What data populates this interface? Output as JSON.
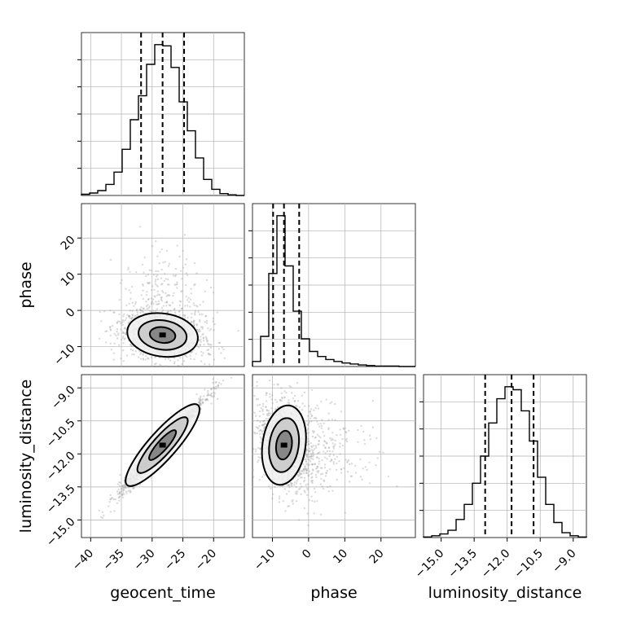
{
  "chart_data": {
    "type": "corner",
    "parameters": [
      "geocent_time",
      "phase",
      "luminosity_distance"
    ],
    "axis_labels": {
      "x": [
        "geocent_time",
        "phase",
        "luminosity_distance"
      ],
      "y": [
        "phase",
        "luminosity_distance"
      ]
    },
    "ranges": {
      "geocent_time": [
        -41.5,
        -15
      ],
      "phase": [
        -15.5,
        29.5
      ],
      "luminosity_distance": [
        -15.8,
        -8.4
      ]
    },
    "ticks": {
      "geocent_time": {
        "values": [
          -40,
          -35,
          -30,
          -25,
          -20
        ],
        "labels": [
          "−40",
          "−35",
          "−30",
          "−25",
          "−20"
        ]
      },
      "phase": {
        "values": [
          -10,
          0,
          10,
          20
        ],
        "labels": [
          "−10",
          "0",
          "10",
          "20"
        ]
      },
      "luminosity_distance": {
        "values": [
          -15.0,
          -13.5,
          -12.0,
          -10.5,
          -9.0
        ],
        "labels": [
          "−15.0",
          "−13.5",
          "−12.0",
          "−10.5",
          "−9.0"
        ]
      }
    },
    "quantiles": {
      "geocent_time": [
        -31.8,
        -28.3,
        -24.8
      ],
      "phase": [
        -9.8,
        -6.8,
        -2.6
      ],
      "luminosity_distance": [
        -13.0,
        -11.8,
        -10.8
      ]
    },
    "histograms": {
      "geocent_time": {
        "edges": [
          -41.5,
          -40.17,
          -38.85,
          -37.52,
          -36.2,
          -34.88,
          -33.55,
          -32.22,
          -30.9,
          -29.58,
          -28.25,
          -26.92,
          -25.6,
          -24.27,
          -22.95,
          -21.62,
          -20.3,
          -18.97,
          -17.65,
          -16.33,
          -15.0
        ],
        "counts": [
          2,
          4,
          8,
          18,
          38,
          75,
          123,
          162,
          213,
          245,
          243,
          208,
          152,
          105,
          61,
          26,
          10,
          3,
          1,
          0
        ]
      },
      "phase": {
        "edges": [
          -15.5,
          -13.25,
          -11.0,
          -8.75,
          -6.5,
          -4.25,
          -2.0,
          0.25,
          2.5,
          4.75,
          7.0,
          9.25,
          11.5,
          13.75,
          16.0,
          18.25,
          20.5,
          22.75,
          25.0,
          27.25,
          29.5
        ],
        "counts": [
          10,
          60,
          185,
          300,
          200,
          110,
          55,
          30,
          20,
          14,
          10,
          7,
          5,
          3,
          2,
          1,
          1,
          1,
          0,
          0
        ]
      },
      "luminosity_distance": {
        "edges": [
          -15.8,
          -15.43,
          -15.06,
          -14.69,
          -14.32,
          -13.95,
          -13.58,
          -13.21,
          -12.84,
          -12.47,
          -12.1,
          -11.73,
          -11.36,
          -10.99,
          -10.62,
          -10.25,
          -9.88,
          -9.51,
          -9.14,
          -8.77,
          -8.4
        ],
        "counts": [
          1,
          3,
          6,
          12,
          30,
          55,
          90,
          135,
          190,
          230,
          250,
          245,
          210,
          160,
          100,
          55,
          25,
          8,
          3,
          1
        ]
      }
    },
    "correlations": {
      "geocent_time|phase": -0.25,
      "geocent_time|luminosity_distance": 0.98,
      "phase|luminosity_distance": -0.28
    },
    "centers": {
      "geocent_time": -28.3,
      "phase": -6.8,
      "luminosity_distance": -11.6
    },
    "contour_levels": 3,
    "grid": true,
    "legend": "none",
    "colors": {
      "line": "#000000",
      "grid": "#b0b0b0",
      "samples": "#999999"
    }
  }
}
